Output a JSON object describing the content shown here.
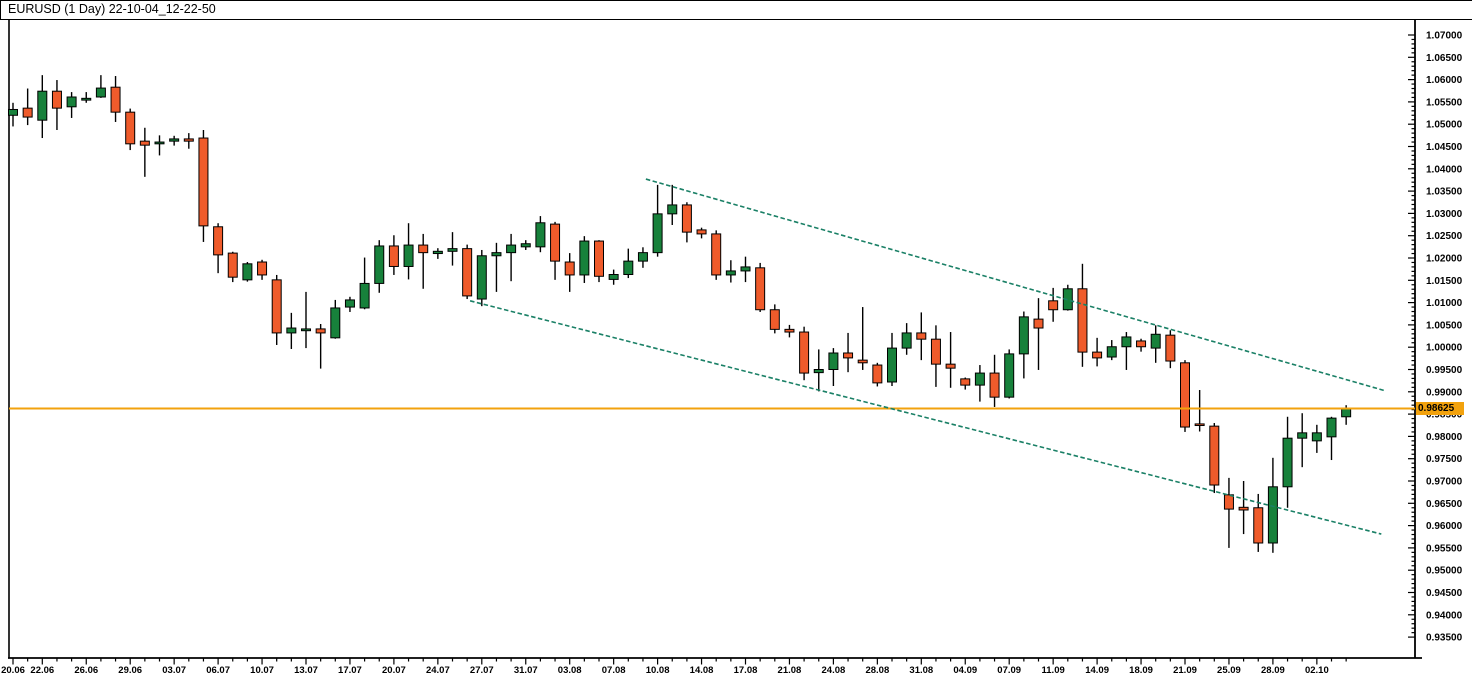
{
  "title": "EURUSD (1 Day) 22-10-04_12-22-50",
  "colors": {
    "background": "#ffffff",
    "axis": "#000000",
    "candle_up": "#17813b",
    "candle_down": "#ef5b2b",
    "candle_outline": "#000000",
    "trendline": "#1a8066",
    "price_line": "#f2a20d",
    "badge_bg": "#f2a20d",
    "badge_text": "#000000",
    "label_text": "#000000"
  },
  "chart_data": {
    "type": "candlestick",
    "symbol": "EURUSD",
    "timeframe": "1 Day",
    "snapshot_time": "22-10-04_12-22-50",
    "current_price": 0.98625,
    "current_price_label": "0.98625",
    "y_axis": {
      "min": 0.935,
      "max": 1.07,
      "step": 0.005,
      "labels": [
        "1.07000",
        "1.06500",
        "1.06000",
        "1.05500",
        "1.05000",
        "1.04500",
        "1.04000",
        "1.03500",
        "1.03000",
        "1.02500",
        "1.02000",
        "1.01500",
        "1.01000",
        "1.00500",
        "1.00000",
        "0.99500",
        "0.99000",
        "0.98500",
        "0.98000",
        "0.97500",
        "0.97000",
        "0.96500",
        "0.96000",
        "0.95500",
        "0.95000",
        "0.94500",
        "0.94000",
        "0.93500"
      ]
    },
    "x_labels": [
      {
        "label": "20.06",
        "i": 0
      },
      {
        "label": "22.06",
        "i": 2
      },
      {
        "label": "26.06",
        "i": 5
      },
      {
        "label": "29.06",
        "i": 8
      },
      {
        "label": "03.07",
        "i": 11
      },
      {
        "label": "06.07",
        "i": 14
      },
      {
        "label": "10.07",
        "i": 17
      },
      {
        "label": "13.07",
        "i": 20
      },
      {
        "label": "17.07",
        "i": 23
      },
      {
        "label": "20.07",
        "i": 26
      },
      {
        "label": "24.07",
        "i": 29
      },
      {
        "label": "27.07",
        "i": 32
      },
      {
        "label": "31.07",
        "i": 35
      },
      {
        "label": "03.08",
        "i": 38
      },
      {
        "label": "07.08",
        "i": 41
      },
      {
        "label": "10.08",
        "i": 44
      },
      {
        "label": "14.08",
        "i": 47
      },
      {
        "label": "17.08",
        "i": 50
      },
      {
        "label": "21.08",
        "i": 53
      },
      {
        "label": "24.08",
        "i": 56
      },
      {
        "label": "28.08",
        "i": 59
      },
      {
        "label": "31.08",
        "i": 62
      },
      {
        "label": "04.09",
        "i": 65
      },
      {
        "label": "07.09",
        "i": 68
      },
      {
        "label": "11.09",
        "i": 71
      },
      {
        "label": "14.09",
        "i": 74
      },
      {
        "label": "18.09",
        "i": 77
      },
      {
        "label": "21.09",
        "i": 80
      },
      {
        "label": "25.09",
        "i": 83
      },
      {
        "label": "28.09",
        "i": 86
      },
      {
        "label": "02.10",
        "i": 89
      }
    ],
    "candles": [
      {
        "d": "20.06",
        "o": 1.052,
        "h": 1.0548,
        "l": 1.0495,
        "c": 1.0533
      },
      {
        "d": "21.06",
        "o": 1.0536,
        "h": 1.058,
        "l": 1.0498,
        "c": 1.0516
      },
      {
        "d": "22.06",
        "o": 1.0509,
        "h": 1.061,
        "l": 1.0469,
        "c": 1.0574
      },
      {
        "d": "23.06",
        "o": 1.0574,
        "h": 1.0599,
        "l": 1.0487,
        "c": 1.0536
      },
      {
        "d": "24.06",
        "o": 1.0539,
        "h": 1.0572,
        "l": 1.0514,
        "c": 1.0561
      },
      {
        "d": "26.06",
        "o": 1.0554,
        "h": 1.0572,
        "l": 1.0548,
        "c": 1.0558
      },
      {
        "d": "27.06",
        "o": 1.0561,
        "h": 1.061,
        "l": 1.0559,
        "c": 1.0581
      },
      {
        "d": "28.06",
        "o": 1.0583,
        "h": 1.0608,
        "l": 1.0505,
        "c": 1.0527
      },
      {
        "d": "29.06",
        "o": 1.0527,
        "h": 1.0535,
        "l": 1.0442,
        "c": 1.0456
      },
      {
        "d": "30.06",
        "o": 1.0462,
        "h": 1.0492,
        "l": 1.0382,
        "c": 1.0453
      },
      {
        "d": "01.07",
        "o": 1.0456,
        "h": 1.0475,
        "l": 1.043,
        "c": 1.046
      },
      {
        "d": "03.07",
        "o": 1.0462,
        "h": 1.0474,
        "l": 1.0452,
        "c": 1.0467
      },
      {
        "d": "04.07",
        "o": 1.0467,
        "h": 1.048,
        "l": 1.0445,
        "c": 1.0462
      },
      {
        "d": "05.07",
        "o": 1.0469,
        "h": 1.0487,
        "l": 1.0236,
        "c": 1.0272
      },
      {
        "d": "06.07",
        "o": 1.027,
        "h": 1.0278,
        "l": 1.0166,
        "c": 1.0207
      },
      {
        "d": "07.07",
        "o": 1.0211,
        "h": 1.0214,
        "l": 1.0146,
        "c": 1.0157
      },
      {
        "d": "08.07",
        "o": 1.0151,
        "h": 1.0191,
        "l": 1.0147,
        "c": 1.0187
      },
      {
        "d": "10.07",
        "o": 1.0191,
        "h": 1.0196,
        "l": 1.0151,
        "c": 1.0162
      },
      {
        "d": "11.07",
        "o": 1.0151,
        "h": 1.0162,
        "l": 1.0005,
        "c": 1.0032
      },
      {
        "d": "12.07",
        "o": 1.0032,
        "h": 1.0077,
        "l": 0.9996,
        "c": 1.0043
      },
      {
        "d": "13.07",
        "o": 1.0037,
        "h": 1.0124,
        "l": 0.9998,
        "c": 1.0041
      },
      {
        "d": "14.07",
        "o": 1.0041,
        "h": 1.0052,
        "l": 0.9952,
        "c": 1.0032
      },
      {
        "d": "15.07",
        "o": 1.0021,
        "h": 1.0106,
        "l": 1.0019,
        "c": 1.0088
      },
      {
        "d": "17.07",
        "o": 1.009,
        "h": 1.0113,
        "l": 1.0079,
        "c": 1.0106
      },
      {
        "d": "18.07",
        "o": 1.0088,
        "h": 1.0201,
        "l": 1.0085,
        "c": 1.0143
      },
      {
        "d": "19.07",
        "o": 1.0143,
        "h": 1.024,
        "l": 1.0122,
        "c": 1.0227
      },
      {
        "d": "20.07",
        "o": 1.0227,
        "h": 1.0251,
        "l": 1.0162,
        "c": 1.0181
      },
      {
        "d": "21.07",
        "o": 1.0181,
        "h": 1.0278,
        "l": 1.0152,
        "c": 1.0229
      },
      {
        "d": "22.07",
        "o": 1.0229,
        "h": 1.0254,
        "l": 1.0131,
        "c": 1.0212
      },
      {
        "d": "24.07",
        "o": 1.021,
        "h": 1.0222,
        "l": 1.0198,
        "c": 1.0215
      },
      {
        "d": "25.07",
        "o": 1.0215,
        "h": 1.0258,
        "l": 1.0183,
        "c": 1.0221
      },
      {
        "d": "26.07",
        "o": 1.0221,
        "h": 1.023,
        "l": 1.0108,
        "c": 1.0115
      },
      {
        "d": "27.07",
        "o": 1.0108,
        "h": 1.0218,
        "l": 1.0092,
        "c": 1.0205
      },
      {
        "d": "28.07",
        "o": 1.0205,
        "h": 1.0234,
        "l": 1.0124,
        "c": 1.0212
      },
      {
        "d": "29.07",
        "o": 1.0212,
        "h": 1.0254,
        "l": 1.0148,
        "c": 1.0229
      },
      {
        "d": "31.07",
        "o": 1.0225,
        "h": 1.024,
        "l": 1.0218,
        "c": 1.0232
      },
      {
        "d": "01.08",
        "o": 1.0225,
        "h": 1.0294,
        "l": 1.0213,
        "c": 1.0279
      },
      {
        "d": "02.08",
        "o": 1.0276,
        "h": 1.0281,
        "l": 1.0151,
        "c": 1.0193
      },
      {
        "d": "03.08",
        "o": 1.0191,
        "h": 1.0211,
        "l": 1.0124,
        "c": 1.0162
      },
      {
        "d": "04.08",
        "o": 1.0162,
        "h": 1.0249,
        "l": 1.0144,
        "c": 1.0238
      },
      {
        "d": "05.08",
        "o": 1.0238,
        "h": 1.024,
        "l": 1.0146,
        "c": 1.0159
      },
      {
        "d": "07.08",
        "o": 1.0152,
        "h": 1.0174,
        "l": 1.014,
        "c": 1.0163
      },
      {
        "d": "08.08",
        "o": 1.0163,
        "h": 1.0221,
        "l": 1.0155,
        "c": 1.0193
      },
      {
        "d": "09.08",
        "o": 1.0193,
        "h": 1.0224,
        "l": 1.0178,
        "c": 1.0212
      },
      {
        "d": "10.08",
        "o": 1.0212,
        "h": 1.0364,
        "l": 1.0203,
        "c": 1.0299
      },
      {
        "d": "11.08",
        "o": 1.0299,
        "h": 1.0364,
        "l": 1.0274,
        "c": 1.0319
      },
      {
        "d": "12.08",
        "o": 1.0319,
        "h": 1.0325,
        "l": 1.0235,
        "c": 1.0258
      },
      {
        "d": "14.08",
        "o": 1.0263,
        "h": 1.0268,
        "l": 1.0244,
        "c": 1.0254
      },
      {
        "d": "15.08",
        "o": 1.0254,
        "h": 1.0262,
        "l": 1.0151,
        "c": 1.0162
      },
      {
        "d": "16.08",
        "o": 1.0162,
        "h": 1.0195,
        "l": 1.0145,
        "c": 1.0171
      },
      {
        "d": "17.08",
        "o": 1.0171,
        "h": 1.0203,
        "l": 1.0146,
        "c": 1.018
      },
      {
        "d": "18.08",
        "o": 1.0178,
        "h": 1.0189,
        "l": 1.0079,
        "c": 1.0084
      },
      {
        "d": "19.08",
        "o": 1.0084,
        "h": 1.0096,
        "l": 1.0031,
        "c": 1.004
      },
      {
        "d": "21.08",
        "o": 1.004,
        "h": 1.005,
        "l": 1.0022,
        "c": 1.0034
      },
      {
        "d": "22.08",
        "o": 1.0034,
        "h": 1.0046,
        "l": 0.9926,
        "c": 0.9942
      },
      {
        "d": "23.08",
        "o": 0.9943,
        "h": 0.9995,
        "l": 0.9901,
        "c": 0.995
      },
      {
        "d": "24.08",
        "o": 0.995,
        "h": 0.9998,
        "l": 0.9913,
        "c": 0.9987
      },
      {
        "d": "25.08",
        "o": 0.9987,
        "h": 1.0032,
        "l": 0.9944,
        "c": 0.9976
      },
      {
        "d": "26.08",
        "o": 0.9971,
        "h": 1.009,
        "l": 0.9949,
        "c": 0.9965
      },
      {
        "d": "28.08",
        "o": 0.996,
        "h": 0.9965,
        "l": 0.9912,
        "c": 0.992
      },
      {
        "d": "29.08",
        "o": 0.9922,
        "h": 1.0032,
        "l": 0.9913,
        "c": 0.9998
      },
      {
        "d": "30.08",
        "o": 0.9998,
        "h": 1.0054,
        "l": 0.9983,
        "c": 1.0032
      },
      {
        "d": "31.08",
        "o": 1.0032,
        "h": 1.0078,
        "l": 0.9971,
        "c": 1.0018
      },
      {
        "d": "01.09",
        "o": 1.0018,
        "h": 1.0049,
        "l": 0.9911,
        "c": 0.9962
      },
      {
        "d": "02.09",
        "o": 0.9962,
        "h": 1.0034,
        "l": 0.9909,
        "c": 0.9953
      },
      {
        "d": "04.09",
        "o": 0.9929,
        "h": 0.9932,
        "l": 0.9905,
        "c": 0.9915
      },
      {
        "d": "05.09",
        "o": 0.9915,
        "h": 0.996,
        "l": 0.9878,
        "c": 0.9942
      },
      {
        "d": "06.09",
        "o": 0.9942,
        "h": 0.9983,
        "l": 0.9866,
        "c": 0.9888
      },
      {
        "d": "07.09",
        "o": 0.9888,
        "h": 0.9995,
        "l": 0.9885,
        "c": 0.9985
      },
      {
        "d": "08.09",
        "o": 0.9985,
        "h": 1.008,
        "l": 0.993,
        "c": 1.0068
      },
      {
        "d": "09.09",
        "o": 1.0063,
        "h": 1.011,
        "l": 0.9949,
        "c": 1.0043
      },
      {
        "d": "11.09",
        "o": 1.0104,
        "h": 1.0133,
        "l": 1.0057,
        "c": 1.0084
      },
      {
        "d": "12.09",
        "o": 1.0084,
        "h": 1.014,
        "l": 1.0082,
        "c": 1.0131
      },
      {
        "d": "13.09",
        "o": 1.0131,
        "h": 1.0187,
        "l": 0.9956,
        "c": 0.9989
      },
      {
        "d": "14.09",
        "o": 0.9989,
        "h": 1.0021,
        "l": 0.9957,
        "c": 0.9976
      },
      {
        "d": "15.09",
        "o": 0.9978,
        "h": 1.0016,
        "l": 0.9971,
        "c": 1.0001
      },
      {
        "d": "16.09",
        "o": 1.0001,
        "h": 1.0034,
        "l": 0.9949,
        "c": 1.0023
      },
      {
        "d": "18.09",
        "o": 1.0014,
        "h": 1.0019,
        "l": 0.999,
        "c": 1.0001
      },
      {
        "d": "19.09",
        "o": 0.9998,
        "h": 1.0049,
        "l": 0.9965,
        "c": 1.0029
      },
      {
        "d": "20.09",
        "o": 1.0027,
        "h": 1.0038,
        "l": 0.9953,
        "c": 0.9969
      },
      {
        "d": "21.09",
        "o": 0.9965,
        "h": 0.9971,
        "l": 0.981,
        "c": 0.9821
      },
      {
        "d": "22.09",
        "o": 0.9828,
        "h": 0.9904,
        "l": 0.9811,
        "c": 0.9826
      },
      {
        "d": "23.09",
        "o": 0.9823,
        "h": 0.983,
        "l": 0.9673,
        "c": 0.9691
      },
      {
        "d": "25.09",
        "o": 0.9669,
        "h": 0.9707,
        "l": 0.955,
        "c": 0.9637
      },
      {
        "d": "26.09",
        "o": 0.9641,
        "h": 0.97,
        "l": 0.9581,
        "c": 0.9635
      },
      {
        "d": "27.09",
        "o": 0.964,
        "h": 0.9671,
        "l": 0.9541,
        "c": 0.9561
      },
      {
        "d": "28.09",
        "o": 0.9561,
        "h": 0.9752,
        "l": 0.9539,
        "c": 0.9687
      },
      {
        "d": "29.09",
        "o": 0.9687,
        "h": 0.9844,
        "l": 0.964,
        "c": 0.9796
      },
      {
        "d": "30.09",
        "o": 0.9796,
        "h": 0.9852,
        "l": 0.9731,
        "c": 0.9808
      },
      {
        "d": "02.10",
        "o": 0.979,
        "h": 0.9826,
        "l": 0.9763,
        "c": 0.9808
      },
      {
        "d": "03.10",
        "o": 0.9799,
        "h": 0.9844,
        "l": 0.9747,
        "c": 0.9841
      },
      {
        "d": "04.10",
        "o": 0.9844,
        "h": 0.987,
        "l": 0.9826,
        "c": 0.98625
      }
    ],
    "trendlines": [
      {
        "name": "channel-upper",
        "i1": 43.2,
        "p1": 1.0377,
        "i2": 93.7,
        "p2": 0.9902
      },
      {
        "name": "channel-lower",
        "i1": 31.2,
        "p1": 1.0104,
        "i2": 93.4,
        "p2": 0.9581
      }
    ],
    "legend": null,
    "grid": false
  }
}
